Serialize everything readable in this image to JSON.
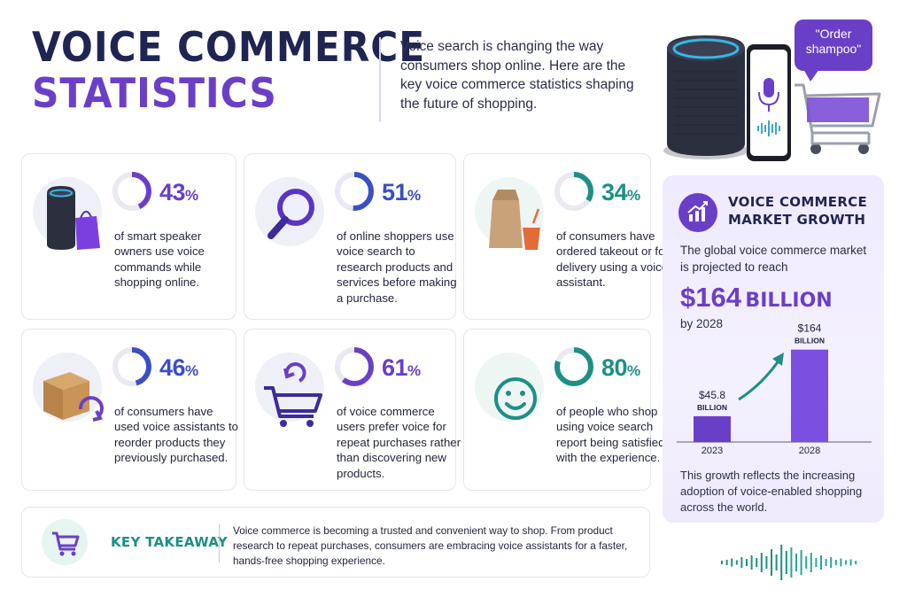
{
  "title": {
    "line1": "VOICE COMMERCE",
    "line2": "STATISTICS"
  },
  "intro": "Voice search is changing the way consumers shop online. Here are the key voice commerce statistics shaping the future of shopping.",
  "hero": {
    "bubble_line1": "\"Order",
    "bubble_line2": "shampoo\""
  },
  "colors": {
    "navy": "#1f2552",
    "purple": "#6a3fc8",
    "blue": "#3a4fc4",
    "teal": "#1d8f86"
  },
  "stats": [
    {
      "value": "43",
      "unit": "%",
      "fraction": 0.43,
      "color": "#6a3fc8",
      "icon": "smart-speaker-icon",
      "text": "of smart speaker owners use voice commands while shopping online."
    },
    {
      "value": "51",
      "unit": "%",
      "fraction": 0.51,
      "color": "#3a4fc4",
      "icon": "magnifier-icon",
      "text": "of online shoppers use voice search to research products and services before making a purchase."
    },
    {
      "value": "34",
      "unit": "%",
      "fraction": 0.34,
      "color": "#1d8f86",
      "icon": "takeout-bag-icon",
      "text": "of consumers have ordered takeout or food delivery using a voice assistant."
    },
    {
      "value": "46",
      "unit": "%",
      "fraction": 0.46,
      "color": "#3a4fc4",
      "icon": "reorder-box-icon",
      "text": "of consumers have used voice assistants to reorder products they previously purchased."
    },
    {
      "value": "61",
      "unit": "%",
      "fraction": 0.61,
      "color": "#6a3fc8",
      "icon": "cart-repeat-icon",
      "text": "of voice commerce users prefer voice for repeat purchases rather than discovering new products."
    },
    {
      "value": "80",
      "unit": "%",
      "fraction": 0.8,
      "color": "#1d8f86",
      "icon": "smiley-icon",
      "text": "of people who shop using voice search report being satisfied with the experience."
    }
  ],
  "market": {
    "title_line1": "VOICE COMMERCE",
    "title_line2": "MARKET GROWTH",
    "text": "The global voice commerce market is projected to reach",
    "big_number": "$164",
    "big_unit": "BILLION",
    "year_text": "by 2028",
    "footer": "This growth reflects the increasing adoption of voice-enabled shopping across the world."
  },
  "chart_data": {
    "type": "bar",
    "categories": [
      "2023",
      "2028"
    ],
    "values": [
      45.8,
      164
    ],
    "value_labels": [
      "$45.8",
      "$164"
    ],
    "unit_label": "BILLION",
    "ylim": [
      0,
      180
    ]
  },
  "takeaway": {
    "label": "KEY TAKEAWAY",
    "text": "Voice commerce is becoming a trusted and convenient way to shop. From product research to repeat purchases, consumers are embracing voice assistants for a faster, hands-free shopping experience."
  }
}
